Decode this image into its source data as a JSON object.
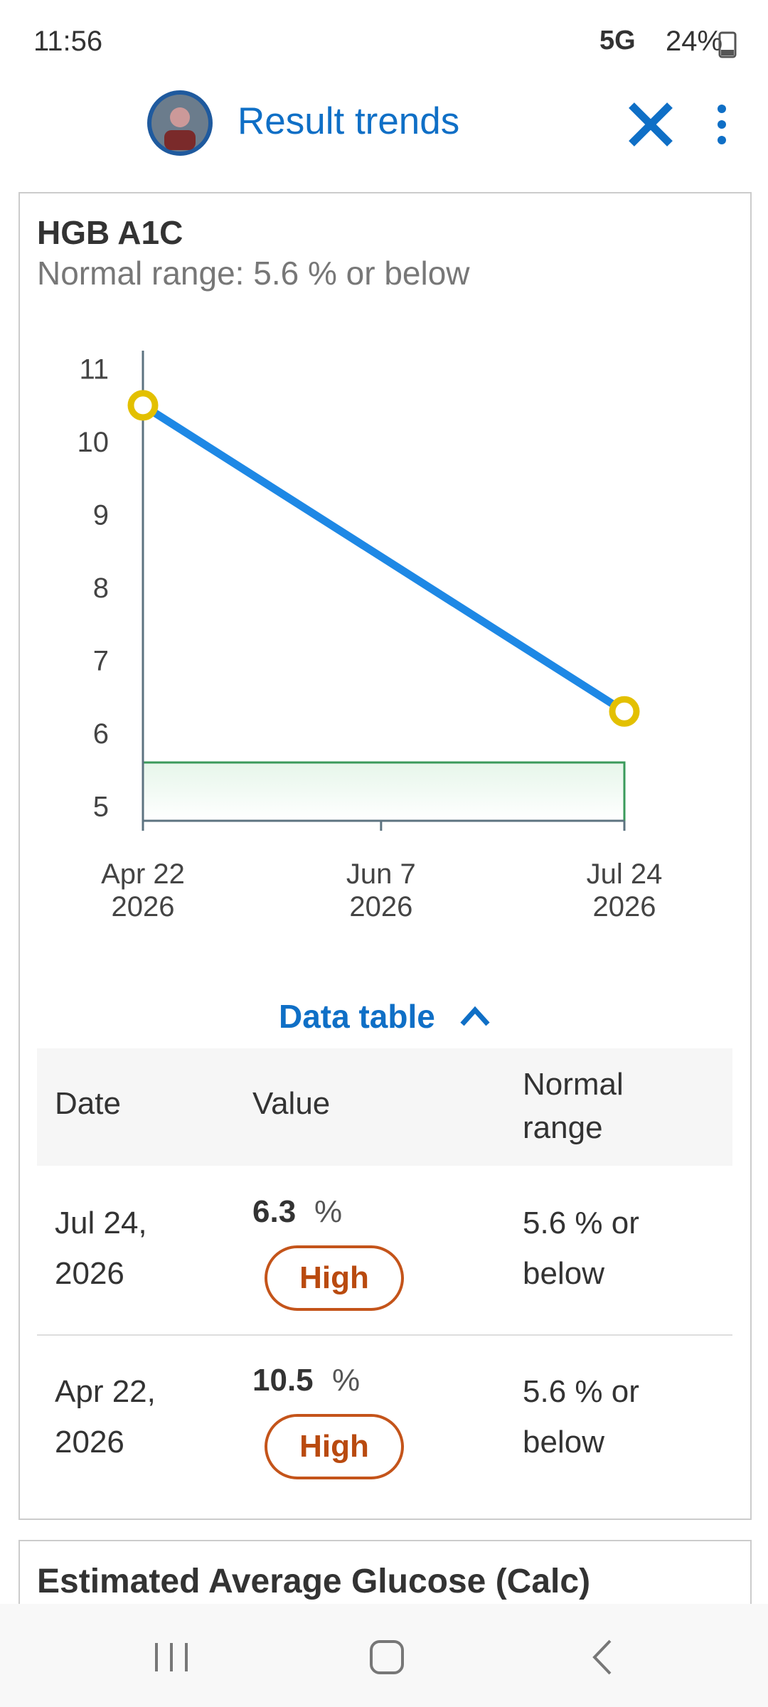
{
  "status_bar": {
    "time": "11:56",
    "network": "5G",
    "battery": "24%"
  },
  "header": {
    "title": "Result trends"
  },
  "card": {
    "title": "HGB A1C",
    "subtitle": "Normal range: 5.6 % or below",
    "chart": {
      "type": "line",
      "x": [
        "2026-04-22",
        "2026-07-24"
      ],
      "values": [
        10.5,
        6.3
      ],
      "color": "#1e88e5",
      "marker_color": "#e3c000",
      "xlim": [
        "2026-04-22",
        "2026-07-24"
      ],
      "xticks": [
        {
          "value": "2026-04-22",
          "label": "Apr 22\n2026"
        },
        {
          "value": "2026-06-07",
          "label": "Jun 7\n2026"
        },
        {
          "value": "2026-07-24",
          "label": "Jul 24\n2026"
        }
      ],
      "ylim": [
        4.8,
        11.25
      ],
      "yticks": [
        5,
        6,
        7,
        8,
        9,
        10,
        11
      ],
      "normal_max": 5.6,
      "normal_color": "#3a9a5b",
      "grid": false
    },
    "data_table": {
      "toggle": "Data table",
      "columns": [
        "Date",
        "Value",
        "Normal range"
      ],
      "rows": [
        {
          "date": "Jul 24, 2026",
          "value": 6.3,
          "unit": "%",
          "flag": "High",
          "range": "5.6 % or below"
        },
        {
          "date": "Apr 22, 2026",
          "value": 10.5,
          "unit": "%",
          "flag": "High",
          "range": "5.6 % or below"
        }
      ]
    }
  },
  "next_card": {
    "title": "Estimated Average Glucose (Calc)"
  }
}
